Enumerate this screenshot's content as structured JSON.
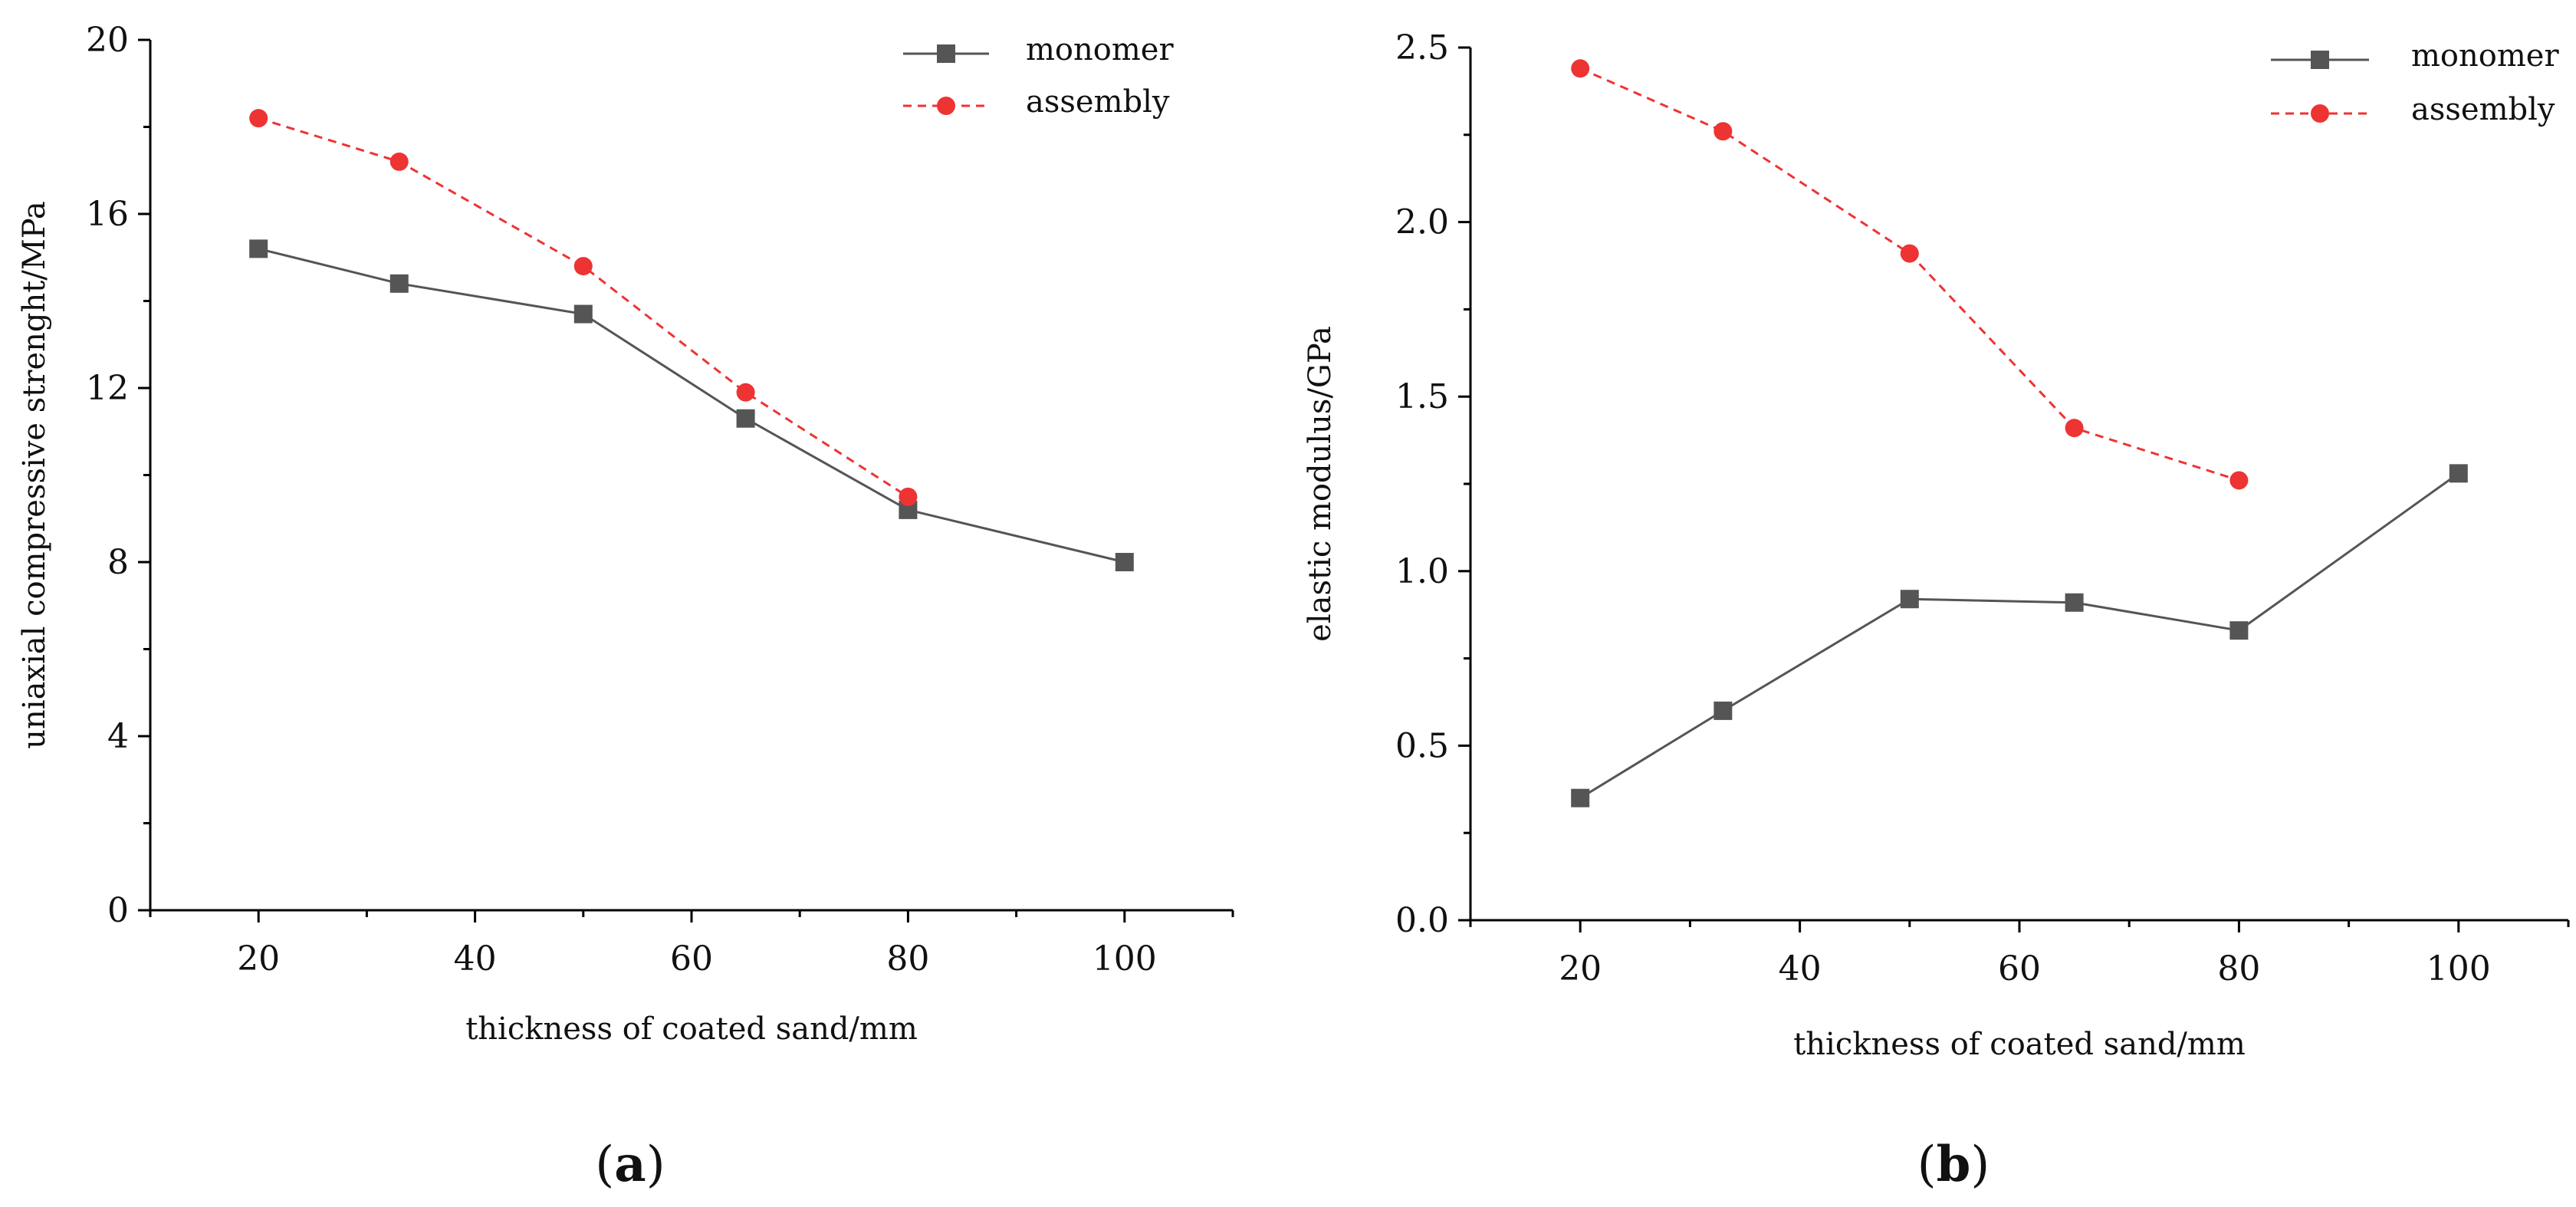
{
  "chart_data": [
    {
      "type": "line",
      "panel_label": "a",
      "xlabel": "thickness of coated sand/mm",
      "ylabel": "uniaxial compressive strenght/MPa",
      "xlim": [
        10,
        110
      ],
      "ylim": [
        0,
        20
      ],
      "xticks": [
        20,
        40,
        60,
        80,
        100
      ],
      "yticks": [
        0,
        4,
        8,
        12,
        16,
        20
      ],
      "legend_position": "top-right",
      "series": [
        {
          "name": "monomer",
          "marker": "square",
          "linestyle": "solid",
          "color": "#555555",
          "x": [
            20,
            33,
            50,
            65,
            80,
            100
          ],
          "y": [
            15.2,
            14.4,
            13.7,
            11.3,
            9.2,
            8.0
          ]
        },
        {
          "name": "assembly",
          "marker": "circle",
          "linestyle": "dashed",
          "color": "#ee3333",
          "x": [
            20,
            33,
            50,
            65,
            80
          ],
          "y": [
            18.2,
            17.2,
            14.8,
            11.9,
            9.5
          ]
        }
      ]
    },
    {
      "type": "line",
      "panel_label": "b",
      "xlabel": "thickness of coated sand/mm",
      "ylabel": "elastic modulus/GPa",
      "xlim": [
        10,
        110
      ],
      "ylim": [
        0,
        2.5
      ],
      "xticks": [
        20,
        40,
        60,
        80,
        100
      ],
      "yticks": [
        0.0,
        0.5,
        1.0,
        1.5,
        2.0,
        2.5
      ],
      "ytick_labels": [
        "0.0",
        "0.5",
        "1.0",
        "1.5",
        "2.0",
        "2.5"
      ],
      "legend_position": "top-right",
      "series": [
        {
          "name": "monomer",
          "marker": "square",
          "linestyle": "solid",
          "color": "#555555",
          "x": [
            20,
            33,
            50,
            65,
            80,
            100
          ],
          "y": [
            0.35,
            0.6,
            0.92,
            0.91,
            0.83,
            1.28
          ]
        },
        {
          "name": "assembly",
          "marker": "circle",
          "linestyle": "dashed",
          "color": "#ee3333",
          "x": [
            20,
            33,
            50,
            65,
            80
          ],
          "y": [
            2.44,
            2.26,
            1.91,
            1.41,
            1.26
          ]
        }
      ]
    }
  ]
}
